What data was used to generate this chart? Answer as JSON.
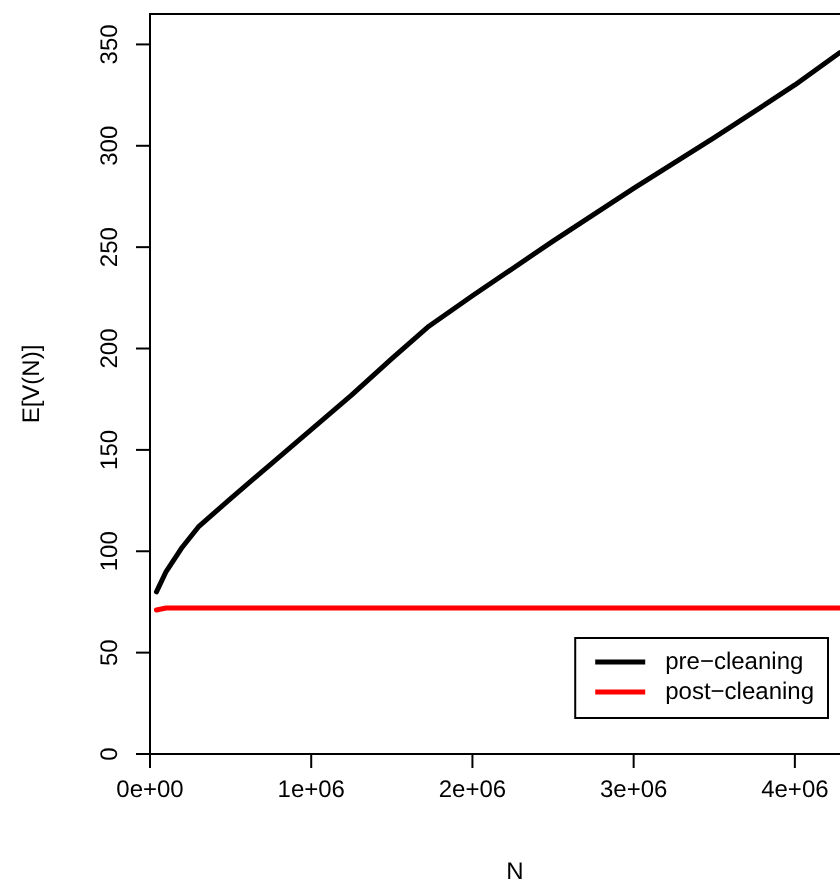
{
  "chart_data": {
    "type": "line",
    "xlabel": "N",
    "ylabel": "E[V(N)]",
    "xlim": [
      0,
      4280000
    ],
    "ylim": [
      0,
      365
    ],
    "xticks": [
      {
        "value": 0,
        "label": "0e+00"
      },
      {
        "value": 1000000,
        "label": "1e+06"
      },
      {
        "value": 2000000,
        "label": "2e+06"
      },
      {
        "value": 3000000,
        "label": "3e+06"
      },
      {
        "value": 4000000,
        "label": "4e+06"
      }
    ],
    "yticks": [
      0,
      50,
      100,
      150,
      200,
      250,
      300,
      350
    ],
    "grid": false,
    "legend": "bottom right",
    "marker": "none",
    "line_style": "solid",
    "series": [
      {
        "name": "pre−cleaning",
        "color": "#000000",
        "x": [
          40000,
          100000,
          200000,
          300000,
          500000,
          750000,
          1000000,
          1250000,
          1500000,
          1730000,
          2000000,
          2500000,
          3000000,
          3500000,
          4000000,
          4280000
        ],
        "values": [
          80,
          90,
          102,
          112,
          126,
          143,
          160,
          177,
          195,
          211,
          226,
          253,
          279,
          304,
          330,
          346
        ]
      },
      {
        "name": "post−cleaning",
        "color": "#ff0000",
        "x": [
          40000,
          100000,
          4280000
        ],
        "values": [
          71,
          72,
          72
        ]
      }
    ]
  }
}
